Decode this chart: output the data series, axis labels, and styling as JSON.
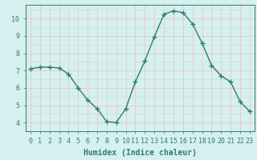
{
  "x": [
    0,
    1,
    2,
    3,
    4,
    5,
    6,
    7,
    8,
    9,
    10,
    11,
    12,
    13,
    14,
    15,
    16,
    17,
    18,
    19,
    20,
    21,
    22,
    23
  ],
  "y": [
    7.1,
    7.2,
    7.2,
    7.15,
    6.8,
    6.0,
    5.3,
    4.8,
    4.05,
    4.0,
    4.8,
    6.35,
    7.55,
    8.95,
    10.25,
    10.45,
    10.35,
    9.7,
    8.6,
    7.3,
    6.7,
    6.35,
    5.2,
    4.65
  ],
  "line_color": "#2e7d6e",
  "marker": "+",
  "marker_size": 4,
  "marker_lw": 1.0,
  "bg_color": "#d6f0ef",
  "grid_minor_color": "#c2e0de",
  "grid_major_color": "#e8c8c8",
  "xlabel": "Humidex (Indice chaleur)",
  "xlim": [
    -0.5,
    23.5
  ],
  "ylim": [
    3.5,
    10.8
  ],
  "yticks": [
    4,
    5,
    6,
    7,
    8,
    9,
    10
  ],
  "xticks": [
    0,
    1,
    2,
    3,
    4,
    5,
    6,
    7,
    8,
    9,
    10,
    11,
    12,
    13,
    14,
    15,
    16,
    17,
    18,
    19,
    20,
    21,
    22,
    23
  ],
  "xlabel_fontsize": 7,
  "tick_fontsize": 6,
  "line_width": 1.0
}
